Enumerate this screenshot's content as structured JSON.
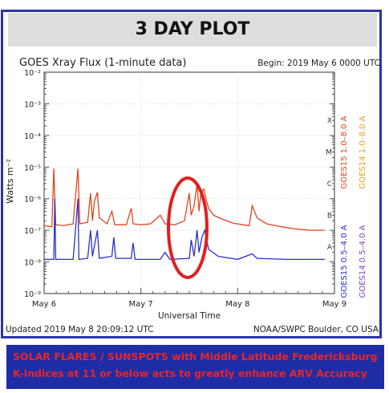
{
  "title": "3 DAY PLOT",
  "caption": {
    "line1": "SOLAR FLARES / SUNSPOTS with Middle Latitude  Fredericksburg",
    "line2": "K-indices at 11 or below acts to greatly enhance ARV Accuracy"
  },
  "chart_data": {
    "type": "line",
    "title": "GOES Xray Flux (1-minute data)",
    "begin_text": "Begin:  2019 May 6  0000 UTC",
    "xlabel": "Universal Time",
    "ylabel": "Watts m⁻²",
    "x_ticks": [
      "May 6",
      "May 7",
      "May 8",
      "May 9"
    ],
    "y_scale": "log",
    "ylim": [
      1e-09,
      0.01
    ],
    "y_ticks": [
      "10⁻²",
      "10⁻³",
      "10⁻⁴",
      "10⁻⁵",
      "10⁻⁶",
      "10⁻⁷",
      "10⁻⁸",
      "10⁻⁹"
    ],
    "flare_classes": [
      "X",
      "M",
      "C",
      "B",
      "A"
    ],
    "legend": [
      {
        "label": "GOES15  1.0–8.0 A",
        "color": "#e0451e"
      },
      {
        "label": "GOES14  1.0–8.0 A",
        "color": "#e8a21a"
      },
      {
        "label": "GOES15  0.5–4.0 A",
        "color": "#2b2fc9"
      },
      {
        "label": "GOES14  0.5–4.0 A",
        "color": "#8a3fc0"
      }
    ],
    "series": [
      {
        "name": "GOES15  1.0–8.0 A",
        "color": "#e0451e",
        "points": [
          [
            0.0,
            1.4e-07
          ],
          [
            0.08,
            1.3e-07
          ],
          [
            0.1,
            9e-06
          ],
          [
            0.12,
            1.5e-07
          ],
          [
            0.2,
            1.4e-07
          ],
          [
            0.3,
            1.6e-07
          ],
          [
            0.35,
            9e-06
          ],
          [
            0.37,
            1.6e-07
          ],
          [
            0.45,
            1.8e-07
          ],
          [
            0.48,
            1.5e-06
          ],
          [
            0.5,
            2e-07
          ],
          [
            0.52,
            8e-07
          ],
          [
            0.55,
            1.6e-06
          ],
          [
            0.57,
            2.5e-07
          ],
          [
            0.65,
            1.6e-07
          ],
          [
            0.7,
            4e-07
          ],
          [
            0.73,
            1.5e-07
          ],
          [
            0.85,
            1.5e-07
          ],
          [
            0.9,
            5e-07
          ],
          [
            0.92,
            1.6e-07
          ],
          [
            1.0,
            1.5e-07
          ],
          [
            1.1,
            1.6e-07
          ],
          [
            1.2,
            3e-07
          ],
          [
            1.25,
            1.6e-07
          ],
          [
            1.35,
            1.5e-07
          ],
          [
            1.45,
            2e-07
          ],
          [
            1.5,
            1.5e-06
          ],
          [
            1.52,
            3e-07
          ],
          [
            1.55,
            6e-07
          ],
          [
            1.58,
            3e-06
          ],
          [
            1.6,
            4e-07
          ],
          [
            1.62,
            1.5e-06
          ],
          [
            1.65,
            2e-06
          ],
          [
            1.68,
            8e-07
          ],
          [
            1.7,
            5e-07
          ],
          [
            1.75,
            3e-07
          ],
          [
            1.85,
            2.2e-07
          ],
          [
            1.95,
            1.7e-07
          ],
          [
            2.05,
            1.5e-07
          ],
          [
            2.12,
            1.4e-07
          ],
          [
            2.15,
            6e-07
          ],
          [
            2.2,
            2.5e-07
          ],
          [
            2.3,
            1.6e-07
          ],
          [
            2.45,
            1.3e-07
          ],
          [
            2.6,
            1.1e-07
          ],
          [
            2.75,
            1e-07
          ],
          [
            2.9,
            1e-07
          ]
        ]
      },
      {
        "name": "GOES15  0.5–4.0 A",
        "color": "#2b2fc9",
        "points": [
          [
            0.0,
            1.2e-08
          ],
          [
            0.1,
            1.2e-08
          ],
          [
            0.11,
            1e-06
          ],
          [
            0.12,
            1.2e-08
          ],
          [
            0.3,
            1.2e-08
          ],
          [
            0.35,
            1e-06
          ],
          [
            0.36,
            1.2e-08
          ],
          [
            0.45,
            1.3e-08
          ],
          [
            0.48,
            1e-07
          ],
          [
            0.5,
            1.5e-08
          ],
          [
            0.55,
            1e-07
          ],
          [
            0.57,
            1.3e-08
          ],
          [
            0.7,
            1.5e-08
          ],
          [
            0.72,
            6e-08
          ],
          [
            0.74,
            1.3e-08
          ],
          [
            0.9,
            1.3e-08
          ],
          [
            0.92,
            4e-08
          ],
          [
            0.94,
            1.2e-08
          ],
          [
            1.2,
            1.2e-08
          ],
          [
            1.25,
            2e-08
          ],
          [
            1.3,
            1.2e-08
          ],
          [
            1.5,
            1.3e-08
          ],
          [
            1.52,
            5e-08
          ],
          [
            1.55,
            1.5e-08
          ],
          [
            1.58,
            1e-07
          ],
          [
            1.6,
            2e-08
          ],
          [
            1.63,
            6e-08
          ],
          [
            1.66,
            1e-07
          ],
          [
            1.7,
            2.5e-08
          ],
          [
            1.8,
            1.5e-08
          ],
          [
            2.0,
            1.2e-08
          ],
          [
            2.15,
            1.8e-08
          ],
          [
            2.2,
            1.3e-08
          ],
          [
            2.5,
            1.2e-08
          ],
          [
            2.9,
            1.2e-08
          ]
        ]
      }
    ],
    "footer_left": "Updated 2019 May  8 20:09:12 UTC",
    "footer_right": "NOAA/SWPC Boulder, CO USA"
  }
}
